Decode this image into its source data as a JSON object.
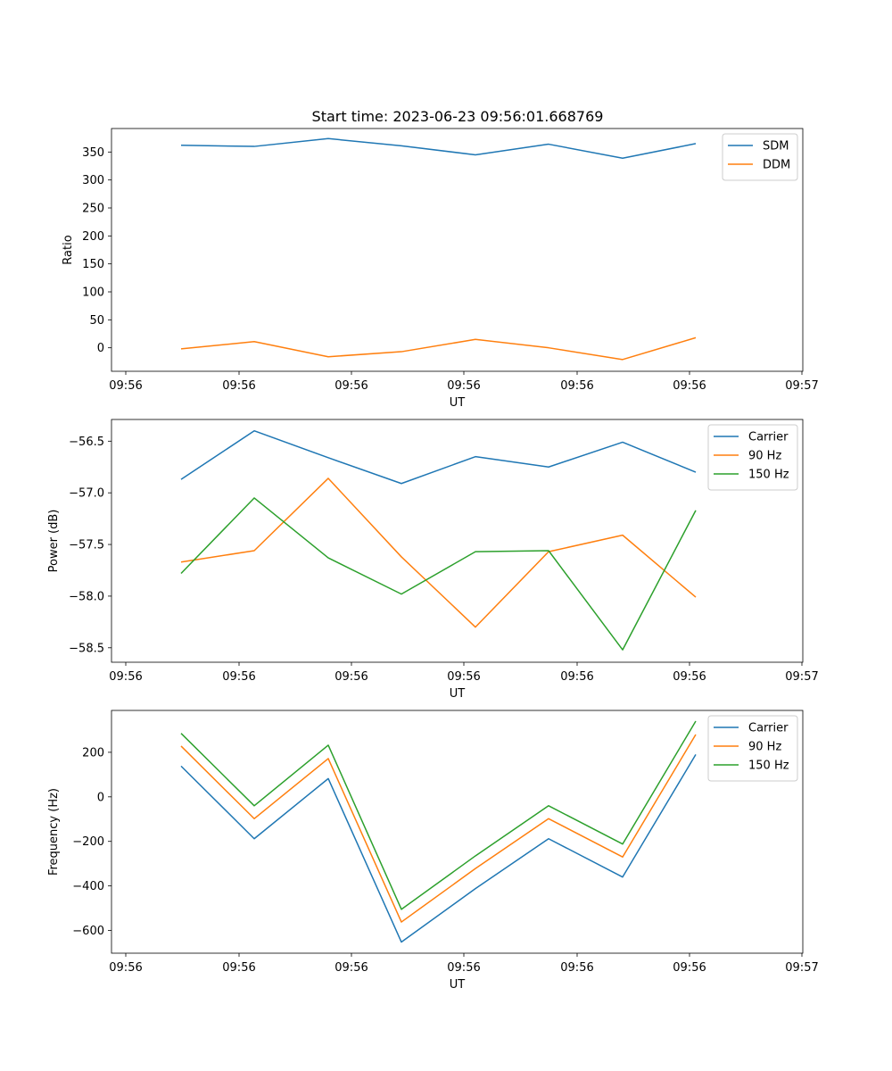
{
  "title": "Start time: 2023-06-23 09:56:01.668769",
  "x_ticks": [
    "09:56",
    "09:56",
    "09:56",
    "09:56",
    "09:56",
    "09:56",
    "09:56",
    "09:57"
  ],
  "colors": {
    "blue": "#1f77b4",
    "orange": "#ff7f0e",
    "green": "#2ca02c"
  },
  "chart_data": [
    {
      "type": "line",
      "title": "Start time: 2023-06-23 09:56:01.668769",
      "xlabel": "UT",
      "ylabel": "Ratio",
      "ylim": [
        -42,
        392
      ],
      "yticks": [
        0,
        50,
        100,
        150,
        200,
        250,
        300,
        350
      ],
      "ytick_labels": [
        "0",
        "50",
        "100",
        "150",
        "200",
        "250",
        "300",
        "350"
      ],
      "legend_placement": "top-right",
      "grid": false,
      "series": [
        {
          "name": "SDM",
          "color": "#1f77b4",
          "values": [
            362,
            360,
            374,
            361,
            345,
            364,
            339,
            365
          ]
        },
        {
          "name": "DDM",
          "color": "#ff7f0e",
          "values": [
            -2,
            11,
            -16,
            -7,
            15,
            0,
            -21,
            18
          ]
        }
      ]
    },
    {
      "type": "line",
      "xlabel": "UT",
      "ylabel": "Power (dB)",
      "ylim": [
        -58.64,
        -56.29
      ],
      "yticks": [
        -58.5,
        -58.0,
        -57.5,
        -57.0,
        -56.5
      ],
      "ytick_labels": [
        "−58.5",
        "−58.0",
        "−57.5",
        "−57.0",
        "−56.5"
      ],
      "legend_placement": "top-right",
      "grid": false,
      "series": [
        {
          "name": "Carrier",
          "color": "#1f77b4",
          "values": [
            -56.87,
            -56.4,
            -56.66,
            -56.91,
            -56.65,
            -56.75,
            -56.51,
            -56.8
          ]
        },
        {
          "name": "90 Hz",
          "color": "#ff7f0e",
          "values": [
            -57.67,
            -57.56,
            -56.86,
            -57.62,
            -58.3,
            -57.57,
            -57.41,
            -58.01
          ]
        },
        {
          "name": "150 Hz",
          "color": "#2ca02c",
          "values": [
            -57.78,
            -57.05,
            -57.63,
            -57.98,
            -57.57,
            -57.56,
            -58.52,
            -57.17
          ]
        }
      ]
    },
    {
      "type": "line",
      "xlabel": "UT",
      "ylabel": "Frequency (Hz)",
      "ylim": [
        -702,
        388
      ],
      "yticks": [
        -600,
        -400,
        -200,
        0,
        200
      ],
      "ytick_labels": [
        "−600",
        "−400",
        "−200",
        "0",
        "200"
      ],
      "legend_placement": "top-right",
      "grid": false,
      "series": [
        {
          "name": "Carrier",
          "color": "#1f77b4",
          "values": [
            138,
            -188,
            82,
            -652,
            -412,
            -188,
            -360,
            190
          ]
        },
        {
          "name": "90 Hz",
          "color": "#ff7f0e",
          "values": [
            228,
            -98,
            172,
            -562,
            -322,
            -98,
            -270,
            280
          ]
        },
        {
          "name": "150 Hz",
          "color": "#2ca02c",
          "values": [
            285,
            -40,
            232,
            -505,
            -265,
            -40,
            -212,
            340
          ]
        }
      ]
    }
  ]
}
